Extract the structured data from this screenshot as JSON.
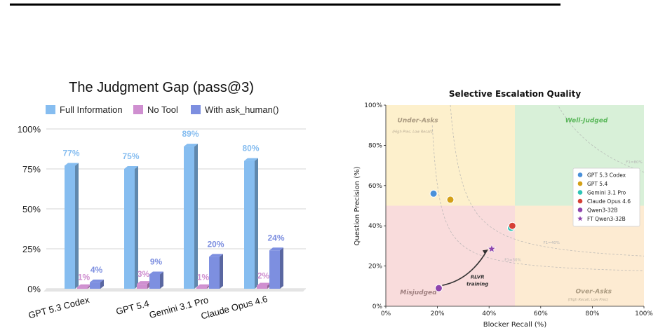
{
  "chart_data": [
    {
      "type": "bar",
      "title": "The Judgment Gap (pass@3)",
      "categories": [
        "GPT 5.3 Codex",
        "GPT 5.4",
        "Gemini 3.1 Pro",
        "Claude Opus 4.6"
      ],
      "ylim": [
        0,
        100
      ],
      "yticks": [
        "0%",
        "25%",
        "50%",
        "75%",
        "100%"
      ],
      "grid": true,
      "legend_position": "top",
      "series": [
        {
          "name": "Full Information",
          "values": [
            77,
            75,
            89,
            80
          ],
          "labels": [
            "77%",
            "75%",
            "89%",
            "80%"
          ],
          "color": "#86bdf0"
        },
        {
          "name": "No Tool",
          "values": [
            1,
            3,
            1,
            2
          ],
          "labels": [
            "1%",
            "3%",
            "1%",
            "2%"
          ],
          "color": "#cf8fd0"
        },
        {
          "name": "With ask_human()",
          "values": [
            4,
            9,
            20,
            24
          ],
          "labels": [
            "4%",
            "9%",
            "20%",
            "24%"
          ],
          "color": "#7d8fe0"
        }
      ]
    },
    {
      "type": "scatter",
      "title": "Selective Escalation Quality",
      "xlabel": "Blocker Recall (%)",
      "ylabel": "Question Precision (%)",
      "xlim": [
        0,
        100
      ],
      "ylim": [
        0,
        100
      ],
      "xticks": [
        "0%",
        "20%",
        "40%",
        "60%",
        "80%",
        "100%"
      ],
      "yticks": [
        "0%",
        "20%",
        "40%",
        "60%",
        "80%",
        "100%"
      ],
      "legend_position": "right",
      "quadrants": [
        {
          "label": "Under-Asks",
          "sublabel": "(High Prec, Low Recall)",
          "color": "#fdf0cc"
        },
        {
          "label": "Well-Judged",
          "sublabel": "",
          "color": "#d8f0d8"
        },
        {
          "label": "Misjudged",
          "sublabel": "",
          "color": "#f9dcdc"
        },
        {
          "label": "Over-Asks",
          "sublabel": "(High Recall, Low Prec)",
          "color": "#fdebd2"
        }
      ],
      "f1_contours": [
        {
          "label": "F1=30%",
          "f1": 30
        },
        {
          "label": "F1=40%",
          "f1": 40
        },
        {
          "label": "F1=80%",
          "f1": 80
        }
      ],
      "series": [
        {
          "name": "GPT 5.3 Codex",
          "x": 18.5,
          "y": 56,
          "color": "#4a90d9",
          "marker": "circle"
        },
        {
          "name": "GPT 5.4",
          "x": 25,
          "y": 53,
          "color": "#d4a017",
          "marker": "circle"
        },
        {
          "name": "Gemini 3.1 Pro",
          "x": 48.5,
          "y": 39,
          "color": "#2ec4b6",
          "marker": "circle"
        },
        {
          "name": "Claude Opus 4.6",
          "x": 49,
          "y": 40,
          "color": "#d64035",
          "marker": "circle"
        },
        {
          "name": "Qwen3-32B",
          "x": 20.5,
          "y": 9,
          "color": "#8e44ad",
          "marker": "circle"
        },
        {
          "name": "FT Qwen3-32B",
          "x": 41,
          "y": 28.5,
          "color": "#8e44ad",
          "marker": "star"
        }
      ],
      "annotation": {
        "line1": "RLVR",
        "line2": "training"
      }
    }
  ]
}
